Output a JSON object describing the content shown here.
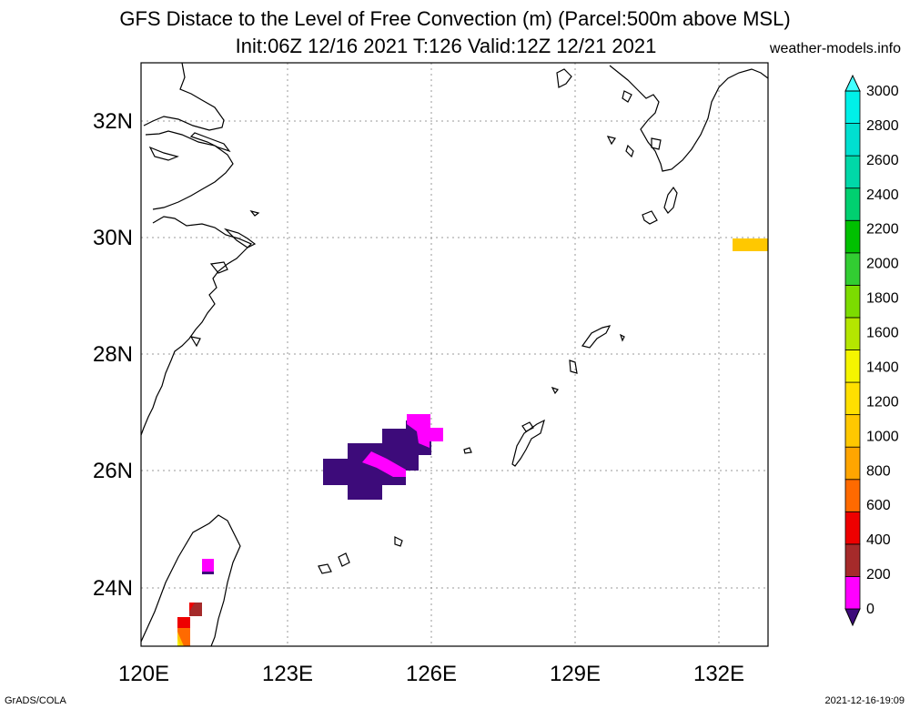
{
  "title_line1": "GFS Distace to the Level of Free Convection (m) (Parcel:500m above MSL)",
  "title_line2": "Init:06Z 12/16 2021 T:126 Valid:12Z 12/21 2021",
  "site": "weather-models.info",
  "footer_left": "GrADS/COLA",
  "footer_right": "2021-12-16-19:09",
  "lon_ticks": [
    "120E",
    "123E",
    "126E",
    "129E",
    "132E"
  ],
  "lat_ticks": [
    "32N",
    "30N",
    "28N",
    "26N",
    "24N"
  ],
  "colorbar": {
    "labels": [
      "0",
      "200",
      "400",
      "600",
      "800",
      "1000",
      "1200",
      "1400",
      "1600",
      "1800",
      "2000",
      "2200",
      "2400",
      "2600",
      "2800",
      "3000"
    ],
    "colors": [
      "#3d0b7a",
      "#ff00ff",
      "#a52a2a",
      "#ee0000",
      "#ff6a00",
      "#ffa500",
      "#ffc800",
      "#ffe000",
      "#f5f500",
      "#b4e600",
      "#7cdc00",
      "#32cd32",
      "#00c000",
      "#00d070",
      "#00d8a8",
      "#00e0d0",
      "#00f0e8",
      "#40ffff"
    ]
  },
  "colors": {
    "purple": "#3d0b7a",
    "magenta": "#ff00ff",
    "brown": "#a52a2a",
    "red": "#ee0000",
    "orange": "#ff6a00",
    "yellow_orange": "#ffc800",
    "yellow": "#f5f500"
  }
}
